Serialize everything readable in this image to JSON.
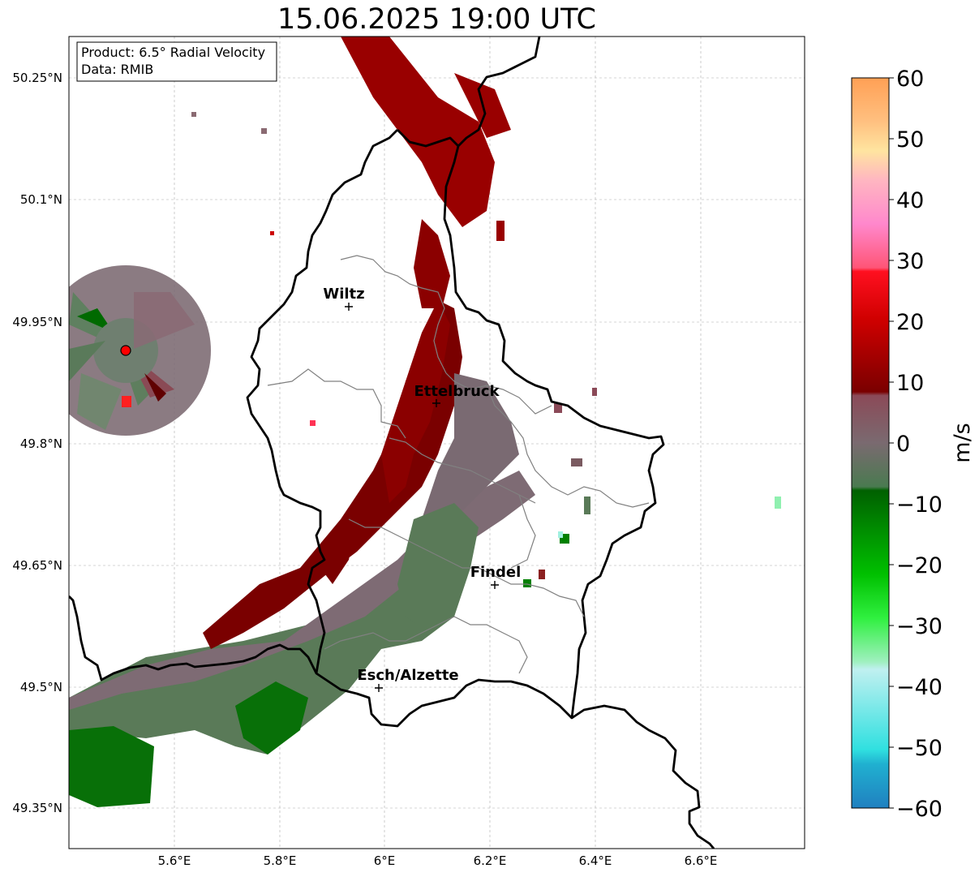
{
  "title": "15.06.2025 19:00 UTC",
  "info_box": {
    "product": "Product: 6.5° Radial Velocity",
    "data": "Data: RMIB"
  },
  "lat_labels": [
    "50.25°N",
    "50.1°N",
    "49.95°N",
    "49.8°N",
    "49.65°N",
    "49.5°N",
    "49.35°N"
  ],
  "lon_labels": [
    "5.6°E",
    "5.8°E",
    "6°E",
    "6.2°E",
    "6.4°E",
    "6.6°E"
  ],
  "cities": [
    {
      "name": "Wiltz",
      "lon": 5.93,
      "lat": 49.968
    },
    {
      "name": "Ettelbruck",
      "lon": 6.1,
      "lat": 49.848
    },
    {
      "name": "Findel",
      "lon": 6.21,
      "lat": 49.625
    },
    {
      "name": "Esch/Alzette",
      "lon": 5.99,
      "lat": 49.497
    }
  ],
  "radar_site": {
    "lon": 5.505,
    "lat": 49.915
  },
  "colorbar": {
    "unit": "m/s",
    "ticks": [
      "60",
      "50",
      "40",
      "30",
      "20",
      "10",
      "0",
      "−10",
      "−20",
      "−30",
      "−40",
      "−50",
      "−60"
    ],
    "colors_top_to_bottom": [
      "#ffa055",
      "#ffc080",
      "#ffe0a0",
      "#ffb6c1",
      "#ff88cc",
      "#ff5577",
      "#f00010",
      "#c00000",
      "#800000",
      "#8b4a58",
      "#7a6a70",
      "#5a8a60",
      "#007000",
      "#00b000",
      "#00f000",
      "#80f0a0",
      "#b0f0f0",
      "#60e0e0",
      "#30d0e0",
      "#2080c0"
    ]
  },
  "legend_data": {
    "type": "radial_velocity",
    "vmin": -60,
    "vmax": 60
  }
}
